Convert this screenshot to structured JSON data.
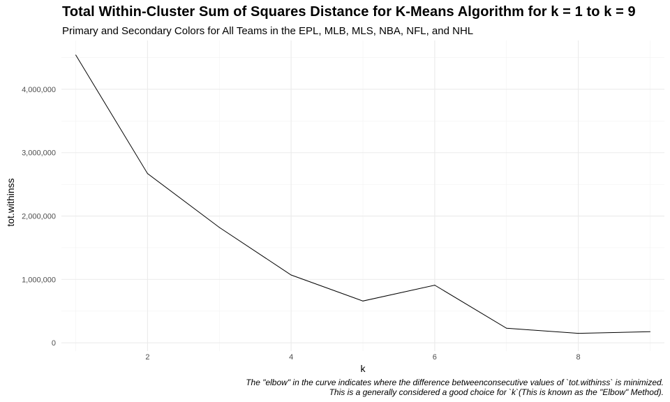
{
  "chart_data": {
    "type": "line",
    "title": "Total Within-Cluster Sum of Squares Distance for K-Means Algorithm for k = 1 to k = 9",
    "subtitle": "Primary and Secondary Colors for All Teams in the EPL, MLB, MLS, NBA, NFL, and NHL",
    "xlabel": "k",
    "ylabel": "tot.withinss",
    "x": [
      1,
      2,
      3,
      4,
      5,
      6,
      7,
      8,
      9
    ],
    "series": [
      {
        "values": [
          4540000,
          2670000,
          1820000,
          1070000,
          660000,
          910000,
          230000,
          150000,
          175000
        ]
      }
    ],
    "xlim": [
      0.8,
      9.2
    ],
    "ylim": [
      -130000,
      4770000
    ],
    "xticks": [
      2,
      4,
      6,
      8
    ],
    "xtick_labels": [
      "2",
      "4",
      "6",
      "8"
    ],
    "yticks": [
      0,
      1000000,
      2000000,
      3000000,
      4000000
    ],
    "ytick_labels": [
      "0",
      "1,000,000",
      "2,000,000",
      "3,000,000",
      "4,000,000"
    ],
    "grid": true,
    "line_color": "#000000",
    "caption": [
      "The \"elbow\" in the curve indicates where the difference betweenconsecutive values of `tot.withinss` is minimized.",
      "This is a generally considered a good choice for `k`(This is known as the \"Elbow\" Method)."
    ]
  }
}
